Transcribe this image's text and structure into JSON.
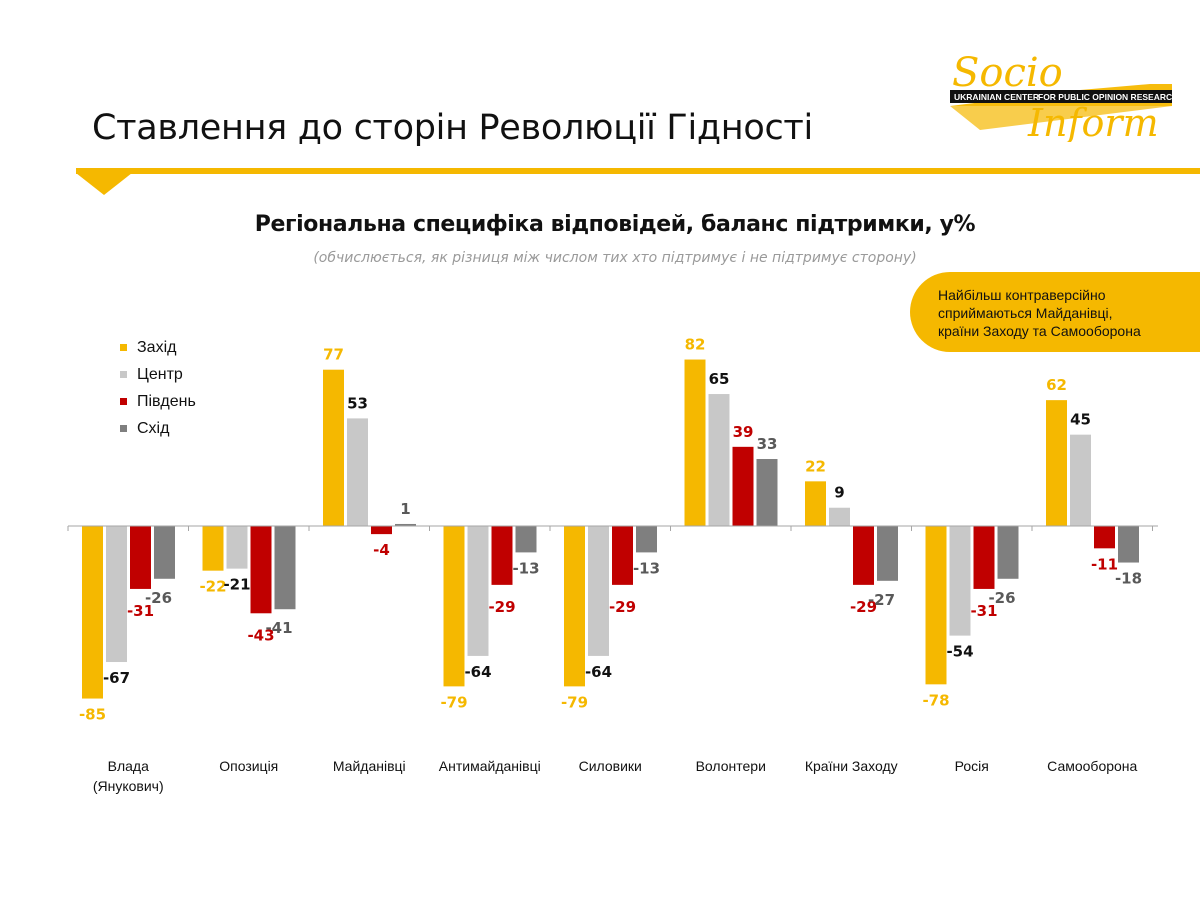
{
  "header": {
    "title": "Ставлення до сторін Революції Гідності"
  },
  "logo": {
    "word_top": "Socio",
    "word_bottom": "Inform",
    "band_left": "UKRAINIAN CENTER",
    "band_right": "FOR PUBLIC OPINION RESEARCH",
    "color": "#f5b800"
  },
  "callout": {
    "lines": [
      "Найбільш контраверсійно",
      "сприймаються Майданівці,",
      "країни Заходу та Самооборона"
    ]
  },
  "colors": {
    "accent": "#f5b800"
  },
  "chart_data": {
    "type": "bar",
    "title": "Регіональна специфіка відповідей, баланс підтримки, у%",
    "subtitle": "(обчислюється, як різниця між числом тих хто підтримує і не підтримує сторону)",
    "categories": [
      "Влада (Янукович)",
      "Опозиція",
      "Майданівці",
      "Антимайданівці",
      "Силовики",
      "Волонтери",
      "Країни Заходу",
      "Росія",
      "Самооборона"
    ],
    "series": [
      {
        "name": "Захід",
        "color": "#f5b800",
        "label_color": "#f5b800",
        "values": [
          -85,
          -22,
          77,
          -79,
          -79,
          82,
          22,
          -78,
          62
        ]
      },
      {
        "name": "Центр",
        "color": "#c8c8c8",
        "label_color": "#111111",
        "values": [
          -67,
          -21,
          53,
          -64,
          -64,
          65,
          9,
          -54,
          45
        ]
      },
      {
        "name": "Південь",
        "color": "#c00000",
        "label_color": "#c00000",
        "values": [
          -31,
          -43,
          -4,
          -29,
          -29,
          39,
          -29,
          -31,
          -11
        ]
      },
      {
        "name": "Схід",
        "color": "#7f7f7f",
        "label_color": "#595959",
        "values": [
          -26,
          -41,
          1,
          -13,
          -13,
          33,
          -27,
          -26,
          -18
        ]
      }
    ],
    "legend_position": "top-left",
    "grid": false
  }
}
